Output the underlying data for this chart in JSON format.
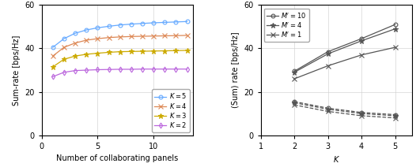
{
  "left": {
    "xlabel": "Number of collaborating panels",
    "ylabel": "Sum-rate [bps/Hz]",
    "ylim": [
      0,
      60
    ],
    "xlim": [
      0.5,
      13.5
    ],
    "xticks": [
      0,
      5,
      10
    ],
    "yticks": [
      0,
      20,
      40,
      60
    ],
    "series": [
      {
        "label": "$K = 5$",
        "color": "#66aaff",
        "marker": "o",
        "mfc": "none",
        "x": [
          1,
          2,
          3,
          4,
          5,
          6,
          7,
          8,
          9,
          10,
          11,
          12,
          13
        ],
        "y": [
          40.5,
          44.5,
          47.0,
          48.5,
          49.5,
          50.2,
          50.8,
          51.2,
          51.5,
          51.8,
          52.0,
          52.2,
          52.4
        ]
      },
      {
        "label": "$K = 4$",
        "color": "#dd8855",
        "marker": "x",
        "mfc": "none",
        "x": [
          1,
          2,
          3,
          4,
          5,
          6,
          7,
          8,
          9,
          10,
          11,
          12,
          13
        ],
        "y": [
          36.5,
          40.5,
          42.5,
          43.8,
          44.5,
          45.0,
          45.3,
          45.5,
          45.6,
          45.7,
          45.8,
          45.9,
          46.0
        ]
      },
      {
        "label": "$K = 3$",
        "color": "#ccaa00",
        "marker": "*",
        "mfc": "none",
        "x": [
          1,
          2,
          3,
          4,
          5,
          6,
          7,
          8,
          9,
          10,
          11,
          12,
          13
        ],
        "y": [
          31.5,
          35.0,
          36.5,
          37.3,
          37.8,
          38.2,
          38.5,
          38.6,
          38.7,
          38.8,
          38.9,
          39.0,
          39.1
        ]
      },
      {
        "label": "$K = 2$",
        "color": "#bb66dd",
        "marker": "d",
        "mfc": "none",
        "x": [
          1,
          2,
          3,
          4,
          5,
          6,
          7,
          8,
          9,
          10,
          11,
          12,
          13
        ],
        "y": [
          27.0,
          29.0,
          29.8,
          30.0,
          30.2,
          30.3,
          30.4,
          30.4,
          30.5,
          30.5,
          30.5,
          30.5,
          30.5
        ]
      }
    ]
  },
  "right": {
    "xlabel": "$K$",
    "ylabel": "(Sum) rate [bps/Hz]",
    "ylim": [
      0,
      60
    ],
    "xlim": [
      1.0,
      5.5
    ],
    "xticks": [
      1,
      2,
      3,
      4,
      5
    ],
    "yticks": [
      0,
      20,
      40,
      60
    ],
    "solid_series": [
      {
        "label": "$M' = 10$",
        "color": "#555555",
        "marker": "o",
        "x": [
          2,
          3,
          4,
          5
        ],
        "y": [
          29.5,
          38.5,
          44.5,
          51.0
        ]
      },
      {
        "label": "$M' = 4$",
        "color": "#555555",
        "marker": "*",
        "x": [
          2,
          3,
          4,
          5
        ],
        "y": [
          29.0,
          37.5,
          43.5,
          49.0
        ]
      },
      {
        "label": "$M' = 1$",
        "color": "#555555",
        "marker": "x",
        "x": [
          2,
          3,
          4,
          5
        ],
        "y": [
          26.0,
          32.0,
          37.0,
          40.5
        ]
      }
    ],
    "dashed_series": [
      {
        "color": "#555555",
        "marker": "o",
        "x": [
          2,
          3,
          4,
          5
        ],
        "y": [
          15.5,
          12.5,
          10.5,
          9.5
        ]
      },
      {
        "color": "#555555",
        "marker": "*",
        "x": [
          2,
          3,
          4,
          5
        ],
        "y": [
          15.0,
          12.0,
          10.0,
          9.0
        ]
      },
      {
        "color": "#555555",
        "marker": "x",
        "x": [
          2,
          3,
          4,
          5
        ],
        "y": [
          14.0,
          11.0,
          9.0,
          8.0
        ]
      }
    ]
  }
}
